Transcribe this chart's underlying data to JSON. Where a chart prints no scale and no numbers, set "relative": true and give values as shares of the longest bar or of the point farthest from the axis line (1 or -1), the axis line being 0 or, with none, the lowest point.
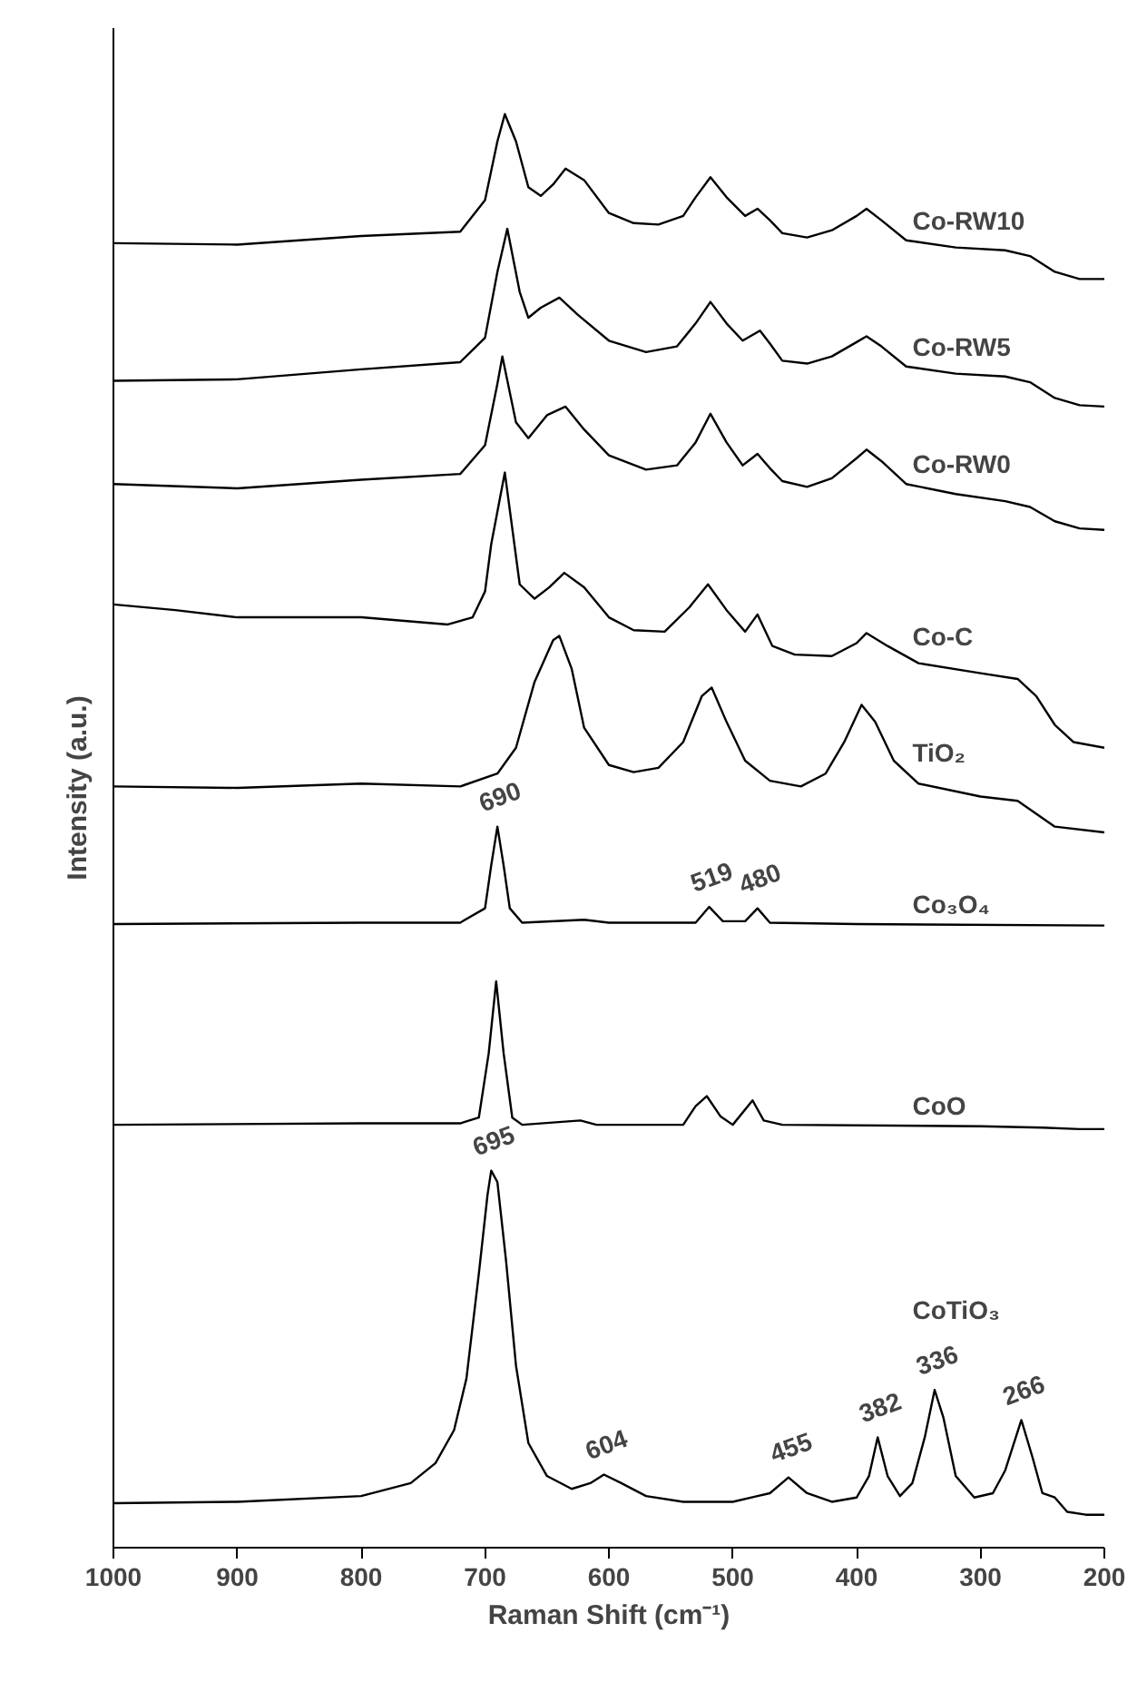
{
  "chart_data": {
    "type": "line",
    "relative": true,
    "xlabel": "Raman Shift (cm⁻¹)",
    "ylabel": "Intensity (a.u.)",
    "xlim": [
      1000,
      200
    ],
    "xticks": [
      1000,
      900,
      800,
      700,
      600,
      500,
      400,
      300,
      200
    ],
    "grid": false,
    "marker": "none",
    "line_style": "solid",
    "series": [
      {
        "name": "Co-RW10",
        "color": "#000000",
        "x": [
          1000,
          900,
          800,
          720,
          700,
          690,
          684,
          675,
          665,
          655,
          645,
          635,
          620,
          600,
          580,
          560,
          540,
          530,
          518,
          505,
          490,
          480,
          470,
          460,
          440,
          420,
          400,
          392,
          380,
          360,
          320,
          280,
          260,
          240,
          220,
          200
        ],
        "values": [
          0.91,
          0.909,
          0.915,
          0.918,
          0.94,
          0.981,
          1.0,
          0.981,
          0.949,
          0.943,
          0.951,
          0.962,
          0.954,
          0.931,
          0.924,
          0.923,
          0.929,
          0.942,
          0.956,
          0.942,
          0.929,
          0.934,
          0.926,
          0.917,
          0.914,
          0.919,
          0.929,
          0.934,
          0.926,
          0.912,
          0.907,
          0.905,
          0.901,
          0.89,
          0.885,
          0.885
        ]
      },
      {
        "name": "Co-RW5",
        "color": "#000000",
        "x": [
          1000,
          900,
          800,
          720,
          700,
          690,
          682,
          672,
          665,
          655,
          640,
          625,
          600,
          570,
          545,
          530,
          518,
          505,
          492,
          478,
          470,
          460,
          440,
          420,
          400,
          392,
          380,
          360,
          320,
          280,
          260,
          240,
          220,
          200
        ],
        "values": [
          0.814,
          0.815,
          0.822,
          0.827,
          0.844,
          0.89,
          0.92,
          0.876,
          0.858,
          0.865,
          0.872,
          0.86,
          0.842,
          0.834,
          0.838,
          0.854,
          0.869,
          0.854,
          0.842,
          0.849,
          0.84,
          0.828,
          0.826,
          0.831,
          0.841,
          0.845,
          0.838,
          0.824,
          0.819,
          0.817,
          0.813,
          0.802,
          0.797,
          0.796
        ]
      },
      {
        "name": "Co-RW0",
        "color": "#000000",
        "x": [
          1000,
          900,
          800,
          720,
          700,
          690,
          686,
          675,
          665,
          650,
          635,
          620,
          600,
          570,
          545,
          530,
          518,
          505,
          492,
          480,
          470,
          460,
          440,
          420,
          400,
          392,
          380,
          360,
          320,
          280,
          260,
          240,
          220,
          200
        ],
        "values": [
          0.742,
          0.739,
          0.745,
          0.749,
          0.769,
          0.812,
          0.831,
          0.785,
          0.774,
          0.79,
          0.796,
          0.78,
          0.762,
          0.752,
          0.755,
          0.771,
          0.791,
          0.771,
          0.755,
          0.763,
          0.753,
          0.744,
          0.74,
          0.746,
          0.76,
          0.766,
          0.758,
          0.742,
          0.735,
          0.73,
          0.726,
          0.716,
          0.711,
          0.71
        ]
      },
      {
        "name": "Co-C",
        "color": "#000000",
        "x": [
          1000,
          950,
          900,
          800,
          730,
          710,
          700,
          695,
          684,
          672,
          660,
          648,
          636,
          620,
          600,
          580,
          555,
          535,
          520,
          505,
          490,
          480,
          468,
          450,
          420,
          400,
          392,
          375,
          350,
          300,
          270,
          255,
          240,
          225,
          200
        ],
        "values": [
          0.658,
          0.654,
          0.649,
          0.649,
          0.644,
          0.649,
          0.667,
          0.7,
          0.75,
          0.672,
          0.662,
          0.67,
          0.68,
          0.67,
          0.649,
          0.64,
          0.639,
          0.656,
          0.672,
          0.654,
          0.639,
          0.651,
          0.629,
          0.623,
          0.622,
          0.631,
          0.638,
          0.629,
          0.617,
          0.61,
          0.606,
          0.594,
          0.574,
          0.562,
          0.558
        ]
      },
      {
        "name": "TiO₂",
        "color": "#000000",
        "x": [
          1000,
          900,
          800,
          720,
          690,
          675,
          660,
          645,
          640,
          630,
          620,
          600,
          580,
          560,
          540,
          525,
          517,
          505,
          490,
          470,
          445,
          425,
          410,
          396,
          385,
          370,
          350,
          300,
          270,
          255,
          240,
          200
        ],
        "values": [
          0.531,
          0.53,
          0.533,
          0.531,
          0.54,
          0.558,
          0.604,
          0.633,
          0.636,
          0.613,
          0.572,
          0.546,
          0.541,
          0.544,
          0.562,
          0.594,
          0.6,
          0.576,
          0.549,
          0.535,
          0.531,
          0.54,
          0.562,
          0.588,
          0.576,
          0.549,
          0.533,
          0.524,
          0.521,
          0.512,
          0.503,
          0.499
        ]
      },
      {
        "name": "Co₃O₄",
        "color": "#000000",
        "x": [
          1000,
          800,
          720,
          700,
          695,
          690,
          685,
          680,
          670,
          620,
          600,
          530,
          519,
          508,
          490,
          480,
          470,
          400,
          200
        ],
        "values": [
          0.435,
          0.436,
          0.436,
          0.446,
          0.476,
          0.503,
          0.476,
          0.446,
          0.436,
          0.438,
          0.436,
          0.436,
          0.447,
          0.437,
          0.437,
          0.446,
          0.436,
          0.435,
          0.434
        ]
      },
      {
        "name": "CoO",
        "color": "#000000",
        "x": [
          1000,
          800,
          720,
          705,
          697,
          691,
          685,
          678,
          670,
          623,
          610,
          540,
          530,
          521,
          510,
          500,
          484,
          475,
          460,
          300,
          250,
          220,
          200
        ],
        "values": [
          0.295,
          0.296,
          0.296,
          0.3,
          0.345,
          0.395,
          0.345,
          0.3,
          0.295,
          0.298,
          0.295,
          0.295,
          0.308,
          0.315,
          0.301,
          0.295,
          0.312,
          0.298,
          0.295,
          0.294,
          0.293,
          0.292,
          0.292
        ]
      },
      {
        "name": "CoTiO₃",
        "color": "#000000",
        "x": [
          1000,
          900,
          800,
          760,
          740,
          725,
          715,
          705,
          698,
          695,
          690,
          683,
          675,
          665,
          650,
          630,
          615,
          604,
          590,
          570,
          540,
          500,
          480,
          470,
          455,
          440,
          420,
          400,
          390,
          383,
          375,
          365,
          355,
          345,
          337,
          330,
          320,
          305,
          290,
          280,
          267,
          258,
          250,
          240,
          230,
          215,
          200
        ],
        "values": [
          0.031,
          0.032,
          0.036,
          0.045,
          0.059,
          0.082,
          0.118,
          0.191,
          0.246,
          0.263,
          0.255,
          0.2,
          0.127,
          0.073,
          0.05,
          0.041,
          0.045,
          0.051,
          0.045,
          0.036,
          0.032,
          0.032,
          0.036,
          0.038,
          0.049,
          0.038,
          0.032,
          0.035,
          0.05,
          0.077,
          0.05,
          0.036,
          0.045,
          0.077,
          0.11,
          0.091,
          0.05,
          0.035,
          0.038,
          0.054,
          0.089,
          0.063,
          0.038,
          0.035,
          0.025,
          0.023,
          0.023
        ]
      }
    ],
    "annotations": [
      {
        "text": "690",
        "x": 690,
        "y": 0.503
      },
      {
        "text": "519",
        "x": 519,
        "y": 0.447
      },
      {
        "text": "480",
        "x": 480,
        "y": 0.446
      },
      {
        "text": "695",
        "x": 695,
        "y": 0.263
      },
      {
        "text": "604",
        "x": 604,
        "y": 0.051
      },
      {
        "text": "455",
        "x": 455,
        "y": 0.049
      },
      {
        "text": "382",
        "x": 383,
        "y": 0.077
      },
      {
        "text": "336",
        "x": 337,
        "y": 0.11
      },
      {
        "text": "266",
        "x": 267,
        "y": 0.089
      }
    ]
  }
}
